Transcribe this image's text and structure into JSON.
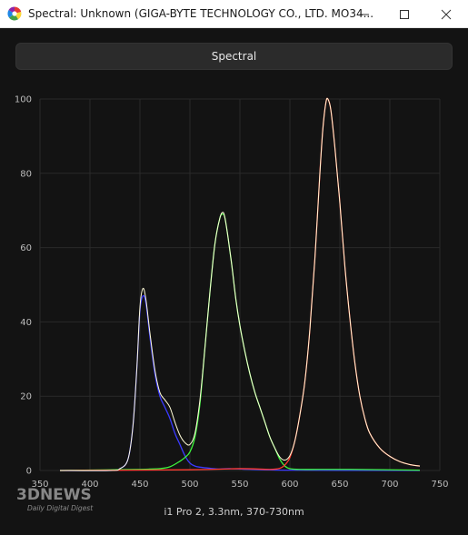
{
  "window": {
    "title": "Spectral: Unknown (GIGA-BYTE TECHNOLOGY CO., LTD. MO34..."
  },
  "toolbar": {
    "spectral_label": "Spectral"
  },
  "caption": "i1 Pro 2, 3.3nm, 370-730nm",
  "watermark": {
    "main": "3DNEWS",
    "sub": "Daily Digital Digest"
  },
  "colors": {
    "blue": "#3a3aff",
    "green": "#3cf53c",
    "red": "#ff3b2f",
    "white": "#fffbd8"
  },
  "chart_data": {
    "type": "line",
    "xlim": [
      350,
      750
    ],
    "ylim": [
      0,
      100
    ],
    "xticks": [
      350,
      400,
      450,
      500,
      550,
      600,
      650,
      700,
      750
    ],
    "yticks": [
      0,
      20,
      40,
      60,
      80,
      100
    ],
    "series": [
      {
        "color": "blue",
        "x": [
          370,
          420,
          430,
          438,
          443,
          447,
          450,
          453,
          456,
          460,
          465,
          470,
          475,
          480,
          485,
          490,
          495,
          500,
          505,
          510,
          520,
          530,
          540,
          560,
          600,
          730
        ],
        "y": [
          0,
          0,
          0.5,
          3,
          12,
          28,
          43,
          47,
          45,
          36,
          26,
          20,
          17,
          14,
          10,
          7,
          4,
          2,
          1.2,
          0.9,
          0.6,
          0.4,
          0.5,
          0.3,
          0.1,
          0
        ]
      },
      {
        "color": "green",
        "x": [
          370,
          450,
          460,
          470,
          480,
          490,
          495,
          500,
          505,
          510,
          515,
          520,
          525,
          530,
          533,
          535,
          538,
          542,
          546,
          550,
          555,
          560,
          565,
          570,
          575,
          580,
          585,
          590,
          595,
          600,
          610,
          630,
          660,
          730
        ],
        "y": [
          0,
          0.3,
          0.4,
          0.5,
          1,
          2.5,
          3.5,
          5,
          9,
          18,
          33,
          48,
          61,
          68,
          69,
          68,
          63,
          55,
          46,
          39,
          32,
          26,
          21,
          17,
          13,
          9,
          6,
          3,
          1.2,
          0.5,
          0.3,
          0.3,
          0.3,
          0.1
        ]
      },
      {
        "color": "red",
        "x": [
          370,
          500,
          550,
          580,
          590,
          595,
          600,
          605,
          610,
          615,
          620,
          625,
          630,
          633,
          636,
          638,
          641,
          645,
          650,
          655,
          660,
          665,
          670,
          675,
          680,
          690,
          700,
          710,
          720,
          730
        ],
        "y": [
          0,
          0.2,
          0.5,
          0.3,
          0.6,
          1.5,
          3.5,
          8,
          15,
          24,
          38,
          57,
          80,
          92,
          99,
          100,
          97,
          87,
          72,
          55,
          41,
          29,
          20,
          14,
          10,
          6,
          3.8,
          2.4,
          1.6,
          1.2
        ]
      },
      {
        "color": "white",
        "x": [
          370,
          420,
          430,
          438,
          443,
          447,
          450,
          453,
          456,
          460,
          465,
          470,
          475,
          480,
          485,
          490,
          495,
          500,
          505,
          510,
          515,
          520,
          525,
          530,
          533,
          535,
          538,
          542,
          546,
          550,
          555,
          560,
          565,
          570,
          575,
          580,
          585,
          590,
          595,
          600,
          605,
          610,
          615,
          620,
          625,
          630,
          633,
          636,
          638,
          641,
          645,
          650,
          655,
          660,
          665,
          670,
          675,
          680,
          690,
          700,
          710,
          720,
          730
        ],
        "y": [
          0,
          0,
          0.5,
          3,
          12,
          28,
          44,
          49,
          46,
          37,
          27,
          21,
          19,
          17,
          13,
          9.5,
          7.5,
          7,
          10,
          19,
          33,
          48,
          61,
          68,
          69.5,
          68,
          63,
          55,
          46,
          39,
          32,
          26,
          21,
          17,
          13,
          9,
          6,
          3.6,
          2.8,
          4,
          8,
          15,
          24,
          38,
          57,
          80,
          92,
          99,
          100,
          97,
          87,
          72,
          55,
          41,
          29,
          20,
          14,
          10,
          6,
          3.8,
          2.4,
          1.6,
          1.2
        ]
      }
    ]
  }
}
